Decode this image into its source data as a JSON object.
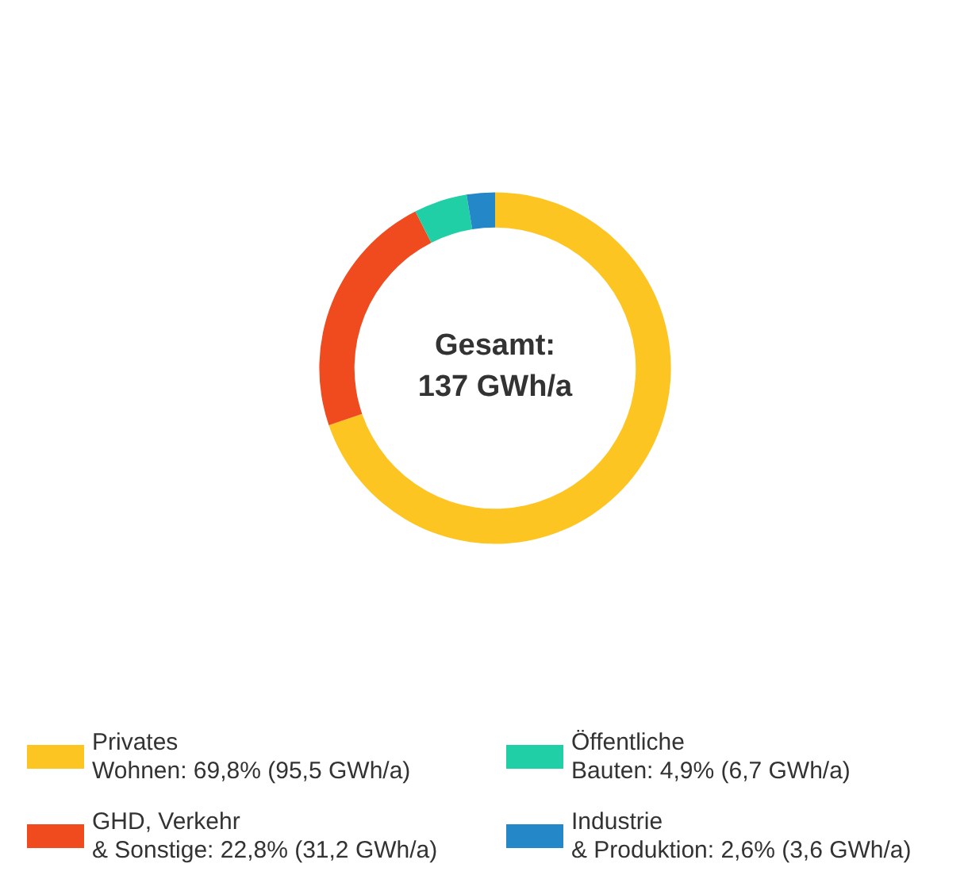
{
  "chart_data": {
    "type": "donut",
    "categories": [
      "Privates\nWohnen: 69,8% (95,5 GWh/a)",
      "GHD, Verkehr\n& Sonstige: 22,8% (31,2 GWh/a)",
      "Öffentliche\nBauten: 4,9% (6,7 GWh/a)",
      "Industrie\n& Produktion: 2,6% (3,6 GWh/a)"
    ],
    "values": [
      69.8,
      22.8,
      4.9,
      2.6
    ],
    "colors": [
      "#fdc521",
      "#f04a1f",
      "#20cfa6",
      "#2387c8"
    ],
    "annotations": [
      "Gesamt:\n137 GWh/a"
    ],
    "legend": "bottom"
  }
}
